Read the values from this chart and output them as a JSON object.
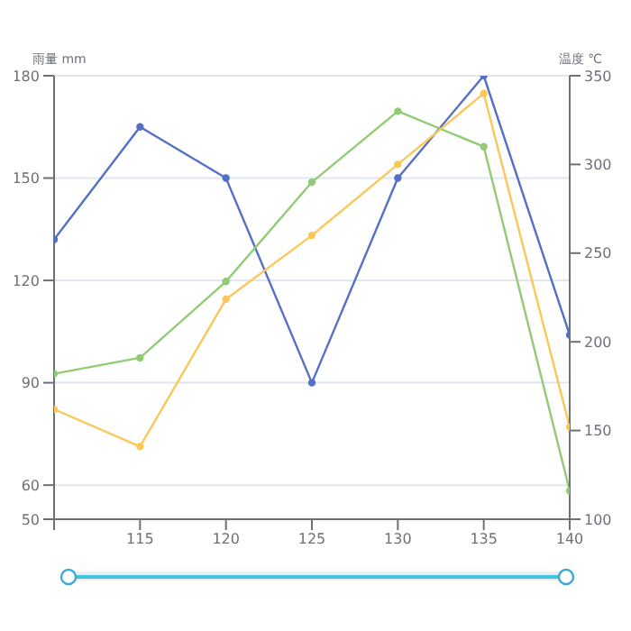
{
  "chart_data": {
    "type": "line",
    "ylabel": "雨量 mm",
    "y2label": "温度 ℃",
    "x": [
      110,
      115,
      120,
      125,
      130,
      135,
      140
    ],
    "xlim": [
      110,
      140
    ],
    "xticks": [
      {
        "value": 110,
        "label": null
      },
      115,
      120,
      125,
      130,
      135,
      140
    ],
    "ylim": [
      50,
      180
    ],
    "yticks": [
      50,
      60,
      90,
      120,
      150,
      180
    ],
    "y2lim": [
      100,
      350
    ],
    "y2ticks": [
      100,
      150,
      200,
      250,
      300,
      350
    ],
    "grid": "y",
    "marker": "circle",
    "line_style": "solid",
    "series": [
      {
        "color": "#5470c6",
        "values": [
          132,
          165,
          150,
          90,
          150,
          180,
          104
        ]
      },
      {
        "color": "#91cc75",
        "axis": "y2",
        "values": [
          182,
          191,
          234,
          290,
          330,
          310,
          116
        ]
      },
      {
        "color": "#fac858",
        "axis": "y2",
        "values": [
          162,
          141,
          224,
          260,
          300,
          340,
          152
        ]
      }
    ]
  }
}
